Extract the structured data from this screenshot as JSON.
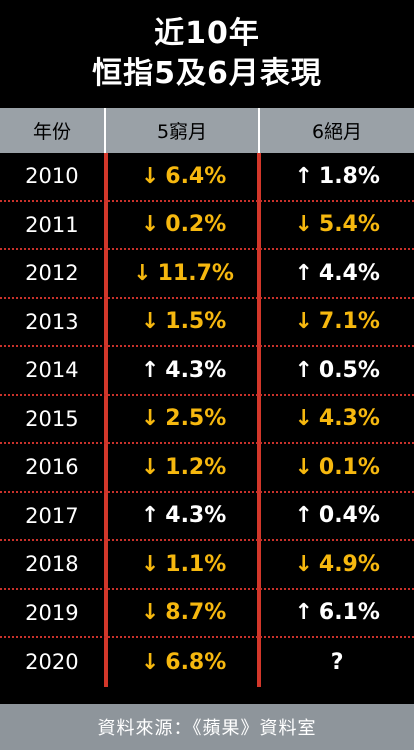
{
  "title": {
    "line1": "近10年",
    "line2": "恒指5及6月表現"
  },
  "colors": {
    "down": "#f6b80f",
    "up": "#ffffff",
    "divider": "#d2372a",
    "header_bg": "#9aa1a7",
    "footer_bg": "#8e959b"
  },
  "icons": {
    "down": "arrow-down-icon",
    "up": "arrow-up-icon"
  },
  "chart_data": {
    "type": "table",
    "columns": [
      "年份",
      "5窮月",
      "6絕月"
    ],
    "rows": [
      {
        "year": "2010",
        "may": {
          "dir": "down",
          "text": "6.4%"
        },
        "jun": {
          "dir": "up",
          "text": "1.8%"
        }
      },
      {
        "year": "2011",
        "may": {
          "dir": "down",
          "text": "0.2%"
        },
        "jun": {
          "dir": "down",
          "text": "5.4%"
        }
      },
      {
        "year": "2012",
        "may": {
          "dir": "down",
          "text": "11.7%"
        },
        "jun": {
          "dir": "up",
          "text": "4.4%"
        }
      },
      {
        "year": "2013",
        "may": {
          "dir": "down",
          "text": "1.5%"
        },
        "jun": {
          "dir": "down",
          "text": "7.1%"
        }
      },
      {
        "year": "2014",
        "may": {
          "dir": "up",
          "text": "4.3%"
        },
        "jun": {
          "dir": "up",
          "text": "0.5%"
        }
      },
      {
        "year": "2015",
        "may": {
          "dir": "down",
          "text": "2.5%"
        },
        "jun": {
          "dir": "down",
          "text": "4.3%"
        }
      },
      {
        "year": "2016",
        "may": {
          "dir": "down",
          "text": "1.2%"
        },
        "jun": {
          "dir": "down",
          "text": "0.1%"
        }
      },
      {
        "year": "2017",
        "may": {
          "dir": "up",
          "text": "4.3%"
        },
        "jun": {
          "dir": "up",
          "text": "0.4%"
        }
      },
      {
        "year": "2018",
        "may": {
          "dir": "down",
          "text": "1.1%"
        },
        "jun": {
          "dir": "down",
          "text": "4.9%"
        }
      },
      {
        "year": "2019",
        "may": {
          "dir": "down",
          "text": "8.7%"
        },
        "jun": {
          "dir": "up",
          "text": "6.1%"
        }
      },
      {
        "year": "2020",
        "may": {
          "dir": "down",
          "text": "6.8%"
        },
        "jun": {
          "dir": "none",
          "text": "?"
        }
      }
    ]
  },
  "footer": {
    "source": "資料來源：《蘋果》資料室"
  }
}
